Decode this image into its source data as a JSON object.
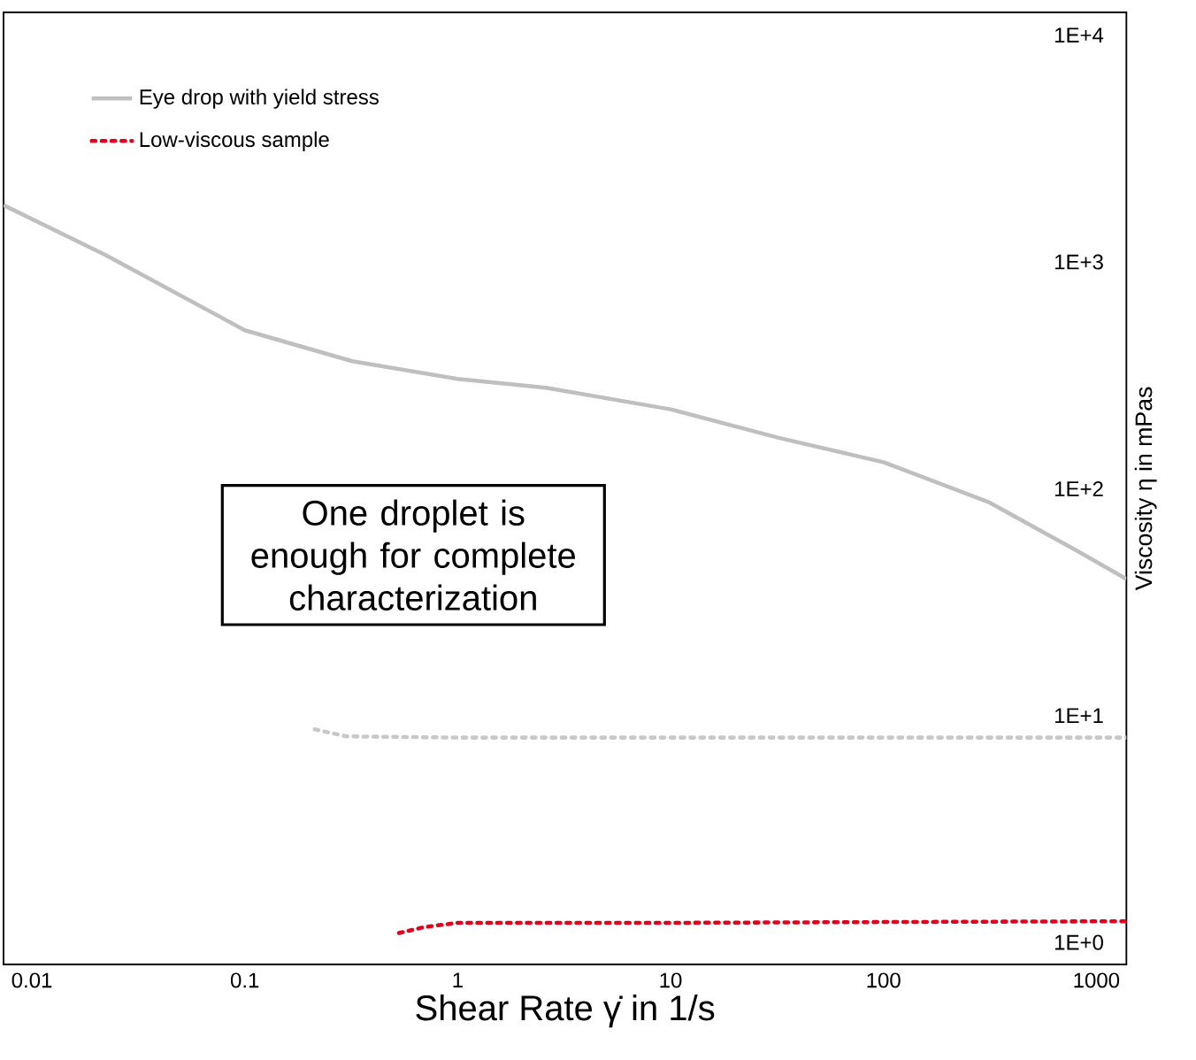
{
  "chart_data": {
    "type": "line",
    "xlabel": "Shear Rate γ̇ in 1/s",
    "ylabel": "Viscosity η in mPas",
    "log": "xy",
    "grid": false,
    "legend": "top left",
    "xlim": [
      0.00736,
      1384
    ],
    "ylim": [
      0.8,
      12600
    ],
    "xticks": [
      0.01,
      0.1,
      1,
      10,
      100,
      1000
    ],
    "yticks": [
      {
        "value": 1,
        "label": "1E+0"
      },
      {
        "value": 10,
        "label": "1E+1"
      },
      {
        "value": 100,
        "label": "1E+2"
      },
      {
        "value": 1000,
        "label": "1E+3"
      },
      {
        "value": 10000,
        "label": "1E+4"
      }
    ],
    "annotations": [
      "One droplet is enough for complete characterization"
    ],
    "series": [
      {
        "name": "Eye drop with yield stress",
        "color": "#bfbfbf",
        "line_style": "solid",
        "x": [
          0.00736,
          0.0223,
          0.1,
          0.32,
          1,
          2.6,
          10,
          32,
          100,
          315,
          818,
          1384
        ],
        "values": [
          1780,
          1070,
          500,
          365,
          305,
          279,
          224,
          168,
          131,
          87,
          53,
          40
        ]
      },
      {
        "color": "#c8c8c8",
        "line_style": "dotted",
        "x": [
          0.213,
          0.3,
          1,
          10,
          100,
          1384
        ],
        "values": [
          8.7,
          8.1,
          8.0,
          8.0,
          8.0,
          8.0
        ]
      },
      {
        "name": "Low-viscous sample",
        "color": "#e2001a",
        "line_style": "dotted",
        "x": [
          0.53,
          0.7,
          1,
          10,
          100,
          1384
        ],
        "values": [
          1.1,
          1.17,
          1.22,
          1.22,
          1.23,
          1.24
        ]
      }
    ]
  }
}
